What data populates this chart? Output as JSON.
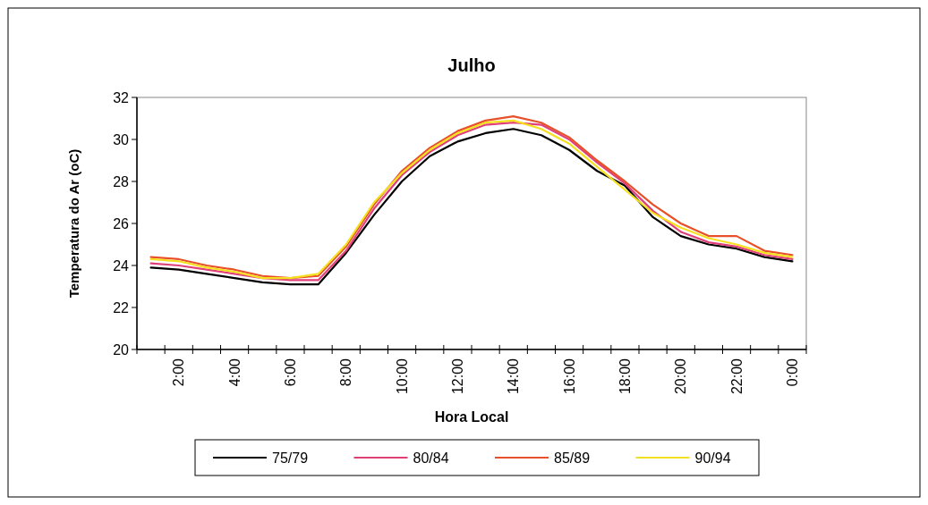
{
  "chart_data": {
    "type": "line",
    "title": "Julho",
    "xlabel": "Hora Local",
    "ylabel": "Temperatura do Ar (oC)",
    "categories": [
      null,
      "2:00",
      null,
      "4:00",
      null,
      "6:00",
      null,
      "8:00",
      null,
      "10:00",
      null,
      "12:00",
      null,
      "14:00",
      null,
      "16:00",
      null,
      "18:00",
      null,
      "20:00",
      null,
      "22:00",
      null,
      "0:00"
    ],
    "ylim": [
      20,
      32
    ],
    "yticks": [
      20,
      22,
      24,
      26,
      28,
      30,
      32
    ],
    "grid": false,
    "legend": "bottom",
    "marker": "none",
    "line_style": "solid",
    "series": [
      {
        "name": "75/79",
        "color": "#000000",
        "values": [
          23.9,
          23.8,
          23.6,
          23.4,
          23.2,
          23.1,
          23.1,
          24.6,
          26.4,
          28.0,
          29.2,
          29.9,
          30.3,
          30.5,
          30.2,
          29.5,
          28.5,
          27.8,
          26.3,
          25.4,
          25.0,
          24.8,
          24.4,
          24.2
        ]
      },
      {
        "name": "80/84",
        "color": "#e0407a",
        "values": [
          24.1,
          24.0,
          23.8,
          23.6,
          23.4,
          23.3,
          23.3,
          24.7,
          26.7,
          28.3,
          29.4,
          30.2,
          30.7,
          30.8,
          30.7,
          30.0,
          28.9,
          27.9,
          26.6,
          25.6,
          25.1,
          24.9,
          24.5,
          24.3
        ]
      },
      {
        "name": "85/89",
        "color": "#e8502a",
        "values": [
          24.4,
          24.3,
          24.0,
          23.8,
          23.5,
          23.4,
          23.5,
          24.9,
          26.9,
          28.5,
          29.6,
          30.4,
          30.9,
          31.1,
          30.8,
          30.1,
          29.0,
          28.0,
          26.9,
          26.0,
          25.4,
          25.4,
          24.7,
          24.5
        ]
      },
      {
        "name": "90/94",
        "color": "#f5e020",
        "values": [
          24.3,
          24.2,
          23.9,
          23.7,
          23.4,
          23.4,
          23.6,
          25.0,
          27.0,
          28.4,
          29.5,
          30.3,
          30.8,
          30.9,
          30.5,
          29.8,
          28.7,
          27.6,
          26.5,
          25.8,
          25.3,
          25.0,
          24.6,
          24.4
        ]
      }
    ]
  }
}
